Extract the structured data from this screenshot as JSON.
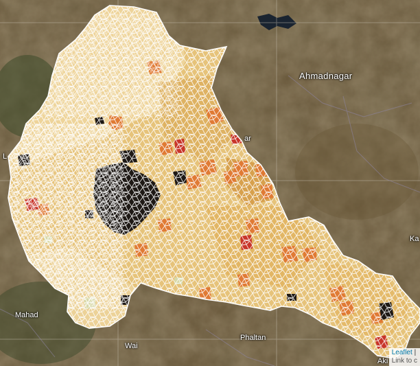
{
  "map": {
    "labels": {
      "ahmadnagar": "Ahmadnagar",
      "mahad": "Mahad",
      "wai": "Wai",
      "phaltan": "Phaltan",
      "ka": "Ka",
      "aki": "Aki",
      "far": "ar",
      "l": "L"
    },
    "attribution": {
      "leaflet": "Leaflet",
      "sep": "|",
      "link": "Link to c"
    },
    "colors": {
      "base": "#e6c37a",
      "light": "#efd9a6",
      "mid": "#d9a24a",
      "orange": "#e07a34",
      "red": "#c8352a",
      "dark": "#1e1915",
      "pale_green": "#d8d9a8",
      "boundary": "#ffffff",
      "terrain": "#5b4a2f"
    }
  }
}
